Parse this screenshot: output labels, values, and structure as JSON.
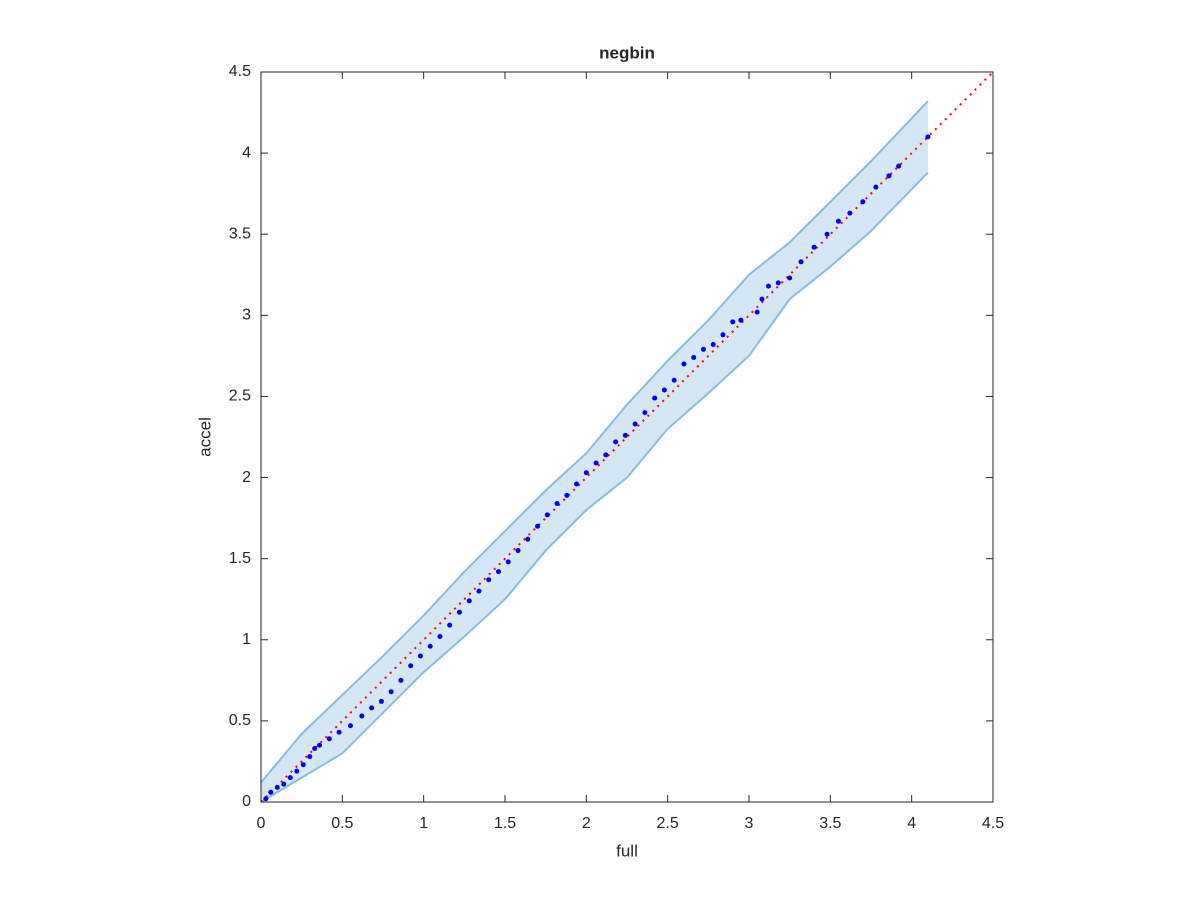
{
  "chart_data": {
    "type": "scatter",
    "title": "negbin",
    "xlabel": "full",
    "ylabel": "accel",
    "xlim": [
      0,
      4.5
    ],
    "ylim": [
      0,
      4.5
    ],
    "xticks": [
      0,
      0.5,
      1,
      1.5,
      2,
      2.5,
      3,
      3.5,
      4,
      4.5
    ],
    "yticks": [
      0,
      0.5,
      1,
      1.5,
      2,
      2.5,
      3,
      3.5,
      4,
      4.5
    ],
    "points": {
      "color": "#0000ff",
      "x": [
        0.03,
        0.06,
        0.1,
        0.14,
        0.18,
        0.22,
        0.26,
        0.3,
        0.33,
        0.36,
        0.42,
        0.48,
        0.55,
        0.62,
        0.68,
        0.74,
        0.8,
        0.86,
        0.92,
        0.98,
        1.04,
        1.1,
        1.16,
        1.22,
        1.28,
        1.34,
        1.4,
        1.46,
        1.52,
        1.58,
        1.64,
        1.7,
        1.76,
        1.82,
        1.88,
        1.94,
        2.0,
        2.06,
        2.12,
        2.18,
        2.24,
        2.3,
        2.36,
        2.42,
        2.48,
        2.54,
        2.6,
        2.66,
        2.72,
        2.78,
        2.84,
        2.9,
        2.95,
        3.05,
        3.08,
        3.12,
        3.18,
        3.25,
        3.32,
        3.4,
        3.48,
        3.55,
        3.62,
        3.7,
        3.78,
        3.86,
        3.92,
        4.1
      ],
      "y": [
        0.02,
        0.06,
        0.09,
        0.11,
        0.15,
        0.19,
        0.23,
        0.28,
        0.33,
        0.35,
        0.39,
        0.43,
        0.47,
        0.53,
        0.58,
        0.62,
        0.68,
        0.75,
        0.84,
        0.9,
        0.96,
        1.02,
        1.09,
        1.17,
        1.24,
        1.3,
        1.37,
        1.42,
        1.48,
        1.55,
        1.62,
        1.7,
        1.77,
        1.84,
        1.89,
        1.96,
        2.03,
        2.09,
        2.14,
        2.22,
        2.26,
        2.33,
        2.4,
        2.49,
        2.54,
        2.6,
        2.7,
        2.74,
        2.79,
        2.82,
        2.88,
        2.96,
        2.97,
        3.02,
        3.1,
        3.18,
        3.2,
        3.23,
        3.33,
        3.42,
        3.5,
        3.58,
        3.63,
        3.7,
        3.79,
        3.86,
        3.92,
        4.1
      ]
    },
    "band": {
      "fill": "#d5e6f5",
      "stroke": "#88bbdd",
      "x": [
        0,
        0.25,
        0.5,
        0.75,
        1.0,
        1.25,
        1.5,
        1.75,
        2.0,
        2.25,
        2.5,
        2.75,
        3.0,
        3.25,
        3.5,
        3.75,
        4.1
      ],
      "upper": [
        0.12,
        0.42,
        0.66,
        0.9,
        1.15,
        1.42,
        1.67,
        1.92,
        2.15,
        2.45,
        2.72,
        2.97,
        3.25,
        3.45,
        3.7,
        3.95,
        4.32
      ],
      "lower": [
        0,
        0.15,
        0.3,
        0.55,
        0.8,
        1.02,
        1.25,
        1.55,
        1.8,
        2.0,
        2.3,
        2.52,
        2.75,
        3.1,
        3.3,
        3.52,
        3.88
      ]
    },
    "reference_line": {
      "color": "#ff0000",
      "x": [
        0,
        4.5
      ],
      "y": [
        0,
        4.5
      ]
    }
  }
}
